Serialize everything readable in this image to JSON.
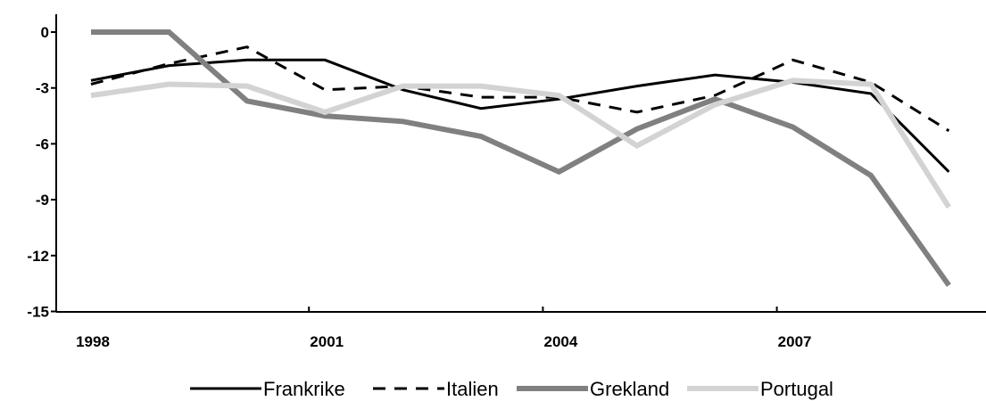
{
  "chart_data": {
    "type": "line",
    "x": [
      1998,
      1999,
      2000,
      2001,
      2002,
      2003,
      2004,
      2005,
      2006,
      2007,
      2008,
      2009
    ],
    "x_tick_labels": [
      "1998",
      "2001",
      "2004",
      "2007"
    ],
    "y_tick_labels": [
      "0",
      "-3",
      "-6",
      "-9",
      "-12",
      "-15"
    ],
    "ylim": [
      -15,
      0
    ],
    "grid": false,
    "legend_position": "bottom",
    "series": [
      {
        "name": "Frankrike",
        "color": "#000000",
        "style": "solid",
        "values": [
          -2.6,
          -1.8,
          -1.5,
          -1.5,
          -3.1,
          -4.1,
          -3.6,
          -2.9,
          -2.3,
          -2.7,
          -3.3,
          -7.5
        ]
      },
      {
        "name": "Italien",
        "color": "#000000",
        "style": "dashed",
        "values": [
          -2.8,
          -1.7,
          -0.8,
          -3.1,
          -2.9,
          -3.5,
          -3.5,
          -4.3,
          -3.4,
          -1.5,
          -2.7,
          -5.3
        ]
      },
      {
        "name": "Grekland",
        "color": "#808080",
        "style": "solid",
        "values": [
          0,
          0,
          -3.7,
          -4.5,
          -4.8,
          -5.6,
          -7.5,
          -5.2,
          -3.6,
          -5.1,
          -7.7,
          -13.6
        ]
      },
      {
        "name": "Portugal",
        "color": "#d3d3d3",
        "style": "solid",
        "values": [
          -3.4,
          -2.8,
          -2.9,
          -4.3,
          -2.9,
          -2.9,
          -3.4,
          -6.1,
          -3.9,
          -2.6,
          -2.8,
          -9.4
        ]
      }
    ]
  }
}
